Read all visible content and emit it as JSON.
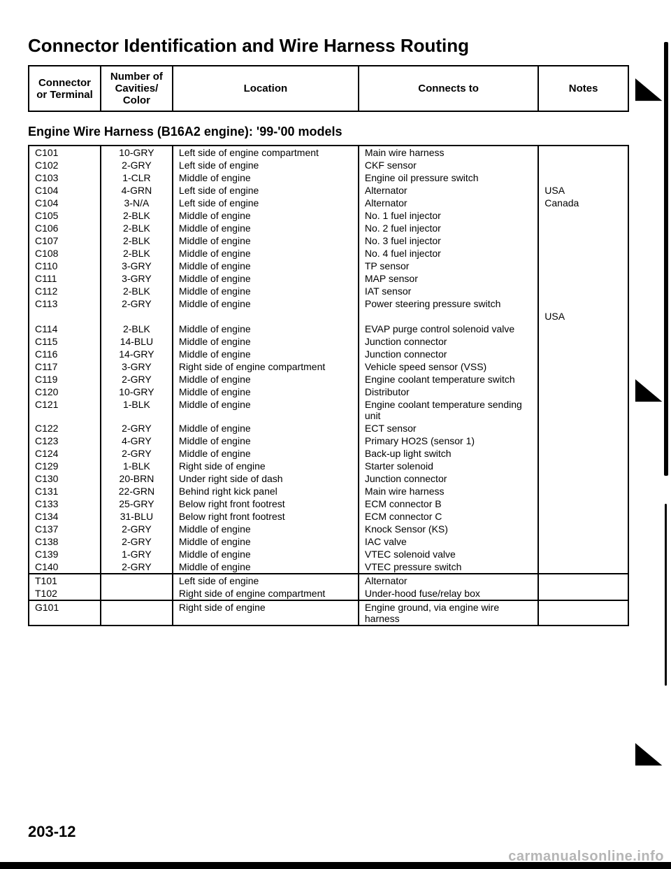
{
  "title": "Connector Identification and Wire Harness Routing",
  "header": {
    "connector": "Connector or Terminal",
    "cavities": "Number of Cavities/ Color",
    "location": "Location",
    "connects": "Connects to",
    "notes": "Notes"
  },
  "subheading": "Engine Wire Harness (B16A2 engine): '99-'00 models",
  "sections": [
    {
      "rows": [
        {
          "c": "C101",
          "v": "10-GRY",
          "l": "Left side of engine compartment",
          "t": "Main wire harness",
          "n": ""
        },
        {
          "c": "C102",
          "v": "2-GRY",
          "l": "Left side of engine",
          "t": "CKF sensor",
          "n": ""
        },
        {
          "c": "C103",
          "v": "1-CLR",
          "l": "Middle of engine",
          "t": "Engine oil pressure switch",
          "n": ""
        },
        {
          "c": "C104",
          "v": "4-GRN",
          "l": "Left side of engine",
          "t": "Alternator",
          "n": "USA"
        },
        {
          "c": "C104",
          "v": "3-N/A",
          "l": "Left side of engine",
          "t": "Alternator",
          "n": "Canada"
        },
        {
          "c": "C105",
          "v": "2-BLK",
          "l": "Middle of engine",
          "t": "No. 1 fuel injector",
          "n": ""
        },
        {
          "c": "C106",
          "v": "2-BLK",
          "l": "Middle of engine",
          "t": "No. 2 fuel injector",
          "n": ""
        },
        {
          "c": "C107",
          "v": "2-BLK",
          "l": "Middle of engine",
          "t": "No. 3 fuel injector",
          "n": ""
        },
        {
          "c": "C108",
          "v": "2-BLK",
          "l": "Middle of engine",
          "t": "No. 4 fuel injector",
          "n": ""
        },
        {
          "c": "C110",
          "v": "3-GRY",
          "l": "Middle of engine",
          "t": "TP sensor",
          "n": ""
        },
        {
          "c": "C111",
          "v": "3-GRY",
          "l": "Middle of engine",
          "t": "MAP sensor",
          "n": ""
        },
        {
          "c": "C112",
          "v": "2-BLK",
          "l": "Middle of engine",
          "t": "IAT sensor",
          "n": ""
        },
        {
          "c": "C113",
          "v": "2-GRY",
          "l": "Middle of engine",
          "t": "Power steering pressure switch",
          "n": ""
        },
        {
          "c": "",
          "v": "",
          "l": "",
          "t": "",
          "n": "USA"
        },
        {
          "c": "C114",
          "v": "2-BLK",
          "l": "Middle of engine",
          "t": "EVAP purge control solenoid valve",
          "n": ""
        },
        {
          "c": "C115",
          "v": "14-BLU",
          "l": "Middle of engine",
          "t": "Junction connector",
          "n": ""
        },
        {
          "c": "C116",
          "v": "14-GRY",
          "l": "Middle of engine",
          "t": "Junction connector",
          "n": ""
        },
        {
          "c": "C117",
          "v": "3-GRY",
          "l": "Right side of engine compartment",
          "t": "Vehicle speed sensor (VSS)",
          "n": ""
        },
        {
          "c": "C119",
          "v": "2-GRY",
          "l": "Middle of engine",
          "t": "Engine coolant temperature switch",
          "n": ""
        },
        {
          "c": "C120",
          "v": "10-GRY",
          "l": "Middle of engine",
          "t": "Distributor",
          "n": ""
        },
        {
          "c": "C121",
          "v": "1-BLK",
          "l": "Middle of engine",
          "t": "Engine coolant temperature sending unit",
          "n": ""
        },
        {
          "c": "C122",
          "v": "2-GRY",
          "l": "Middle of engine",
          "t": "ECT sensor",
          "n": ""
        },
        {
          "c": "C123",
          "v": "4-GRY",
          "l": "Middle of engine",
          "t": "Primary HO2S (sensor 1)",
          "n": ""
        },
        {
          "c": "C124",
          "v": "2-GRY",
          "l": "Middle of engine",
          "t": "Back-up light switch",
          "n": ""
        },
        {
          "c": "C129",
          "v": "1-BLK",
          "l": "Right side of engine",
          "t": "Starter solenoid",
          "n": ""
        },
        {
          "c": "C130",
          "v": "20-BRN",
          "l": "Under right side of dash",
          "t": "Junction connector",
          "n": ""
        },
        {
          "c": "C131",
          "v": "22-GRN",
          "l": "Behind right kick panel",
          "t": "Main wire harness",
          "n": ""
        },
        {
          "c": "C133",
          "v": "25-GRY",
          "l": "Below right front footrest",
          "t": "ECM connector B",
          "n": ""
        },
        {
          "c": "C134",
          "v": "31-BLU",
          "l": "Below right front footrest",
          "t": "ECM connector C",
          "n": ""
        },
        {
          "c": "C137",
          "v": "2-GRY",
          "l": "Middle of engine",
          "t": "Knock Sensor (KS)",
          "n": ""
        },
        {
          "c": "C138",
          "v": "2-GRY",
          "l": "Middle of engine",
          "t": "IAC valve",
          "n": ""
        },
        {
          "c": "C139",
          "v": "1-GRY",
          "l": "Middle of engine",
          "t": "VTEC solenoid valve",
          "n": ""
        },
        {
          "c": "C140",
          "v": "2-GRY",
          "l": "Middle of engine",
          "t": "VTEC pressure switch",
          "n": ""
        }
      ]
    },
    {
      "rows": [
        {
          "c": "T101",
          "v": "",
          "l": "Left side of engine",
          "t": "Alternator",
          "n": ""
        },
        {
          "c": "T102",
          "v": "",
          "l": "Right side of engine compartment",
          "t": "Under-hood fuse/relay box",
          "n": ""
        }
      ]
    },
    {
      "rows": [
        {
          "c": "G101",
          "v": "",
          "l": "Right side of engine",
          "t": "Engine ground, via engine wire harness",
          "n": ""
        }
      ]
    }
  ],
  "page_number": "203-12",
  "watermark": "carmanualsonline.info"
}
